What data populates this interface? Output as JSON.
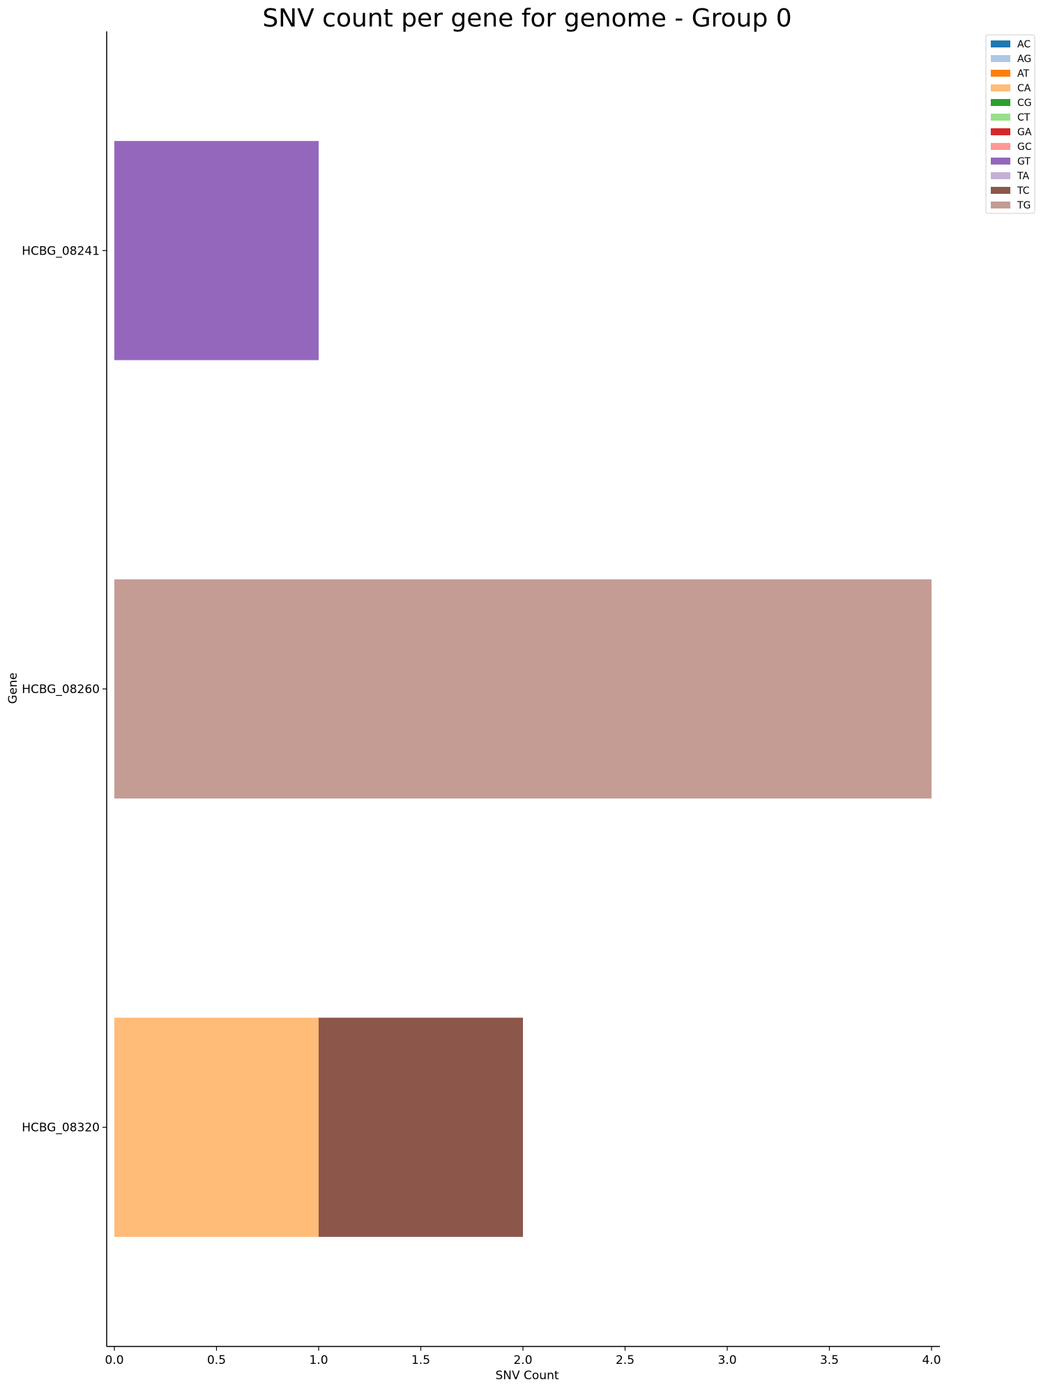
{
  "chart_data": {
    "type": "bar",
    "orientation": "horizontal",
    "stacked": true,
    "title": "SNV count per gene for genome - Group 0",
    "xlabel": "SNV Count",
    "ylabel": "Gene",
    "xlim": [
      0,
      4
    ],
    "xticks": [
      "0.0",
      "0.5",
      "1.0",
      "1.5",
      "2.0",
      "2.5",
      "3.0",
      "3.5",
      "4.0"
    ],
    "categories": [
      "HCBG_08241",
      "HCBG_08260",
      "HCBG_08320"
    ],
    "series": [
      {
        "name": "AC",
        "color": "#1f77b4",
        "values": [
          0,
          0,
          0
        ]
      },
      {
        "name": "AG",
        "color": "#aec7e8",
        "values": [
          0,
          0,
          0
        ]
      },
      {
        "name": "AT",
        "color": "#ff7f0e",
        "values": [
          0,
          0,
          0
        ]
      },
      {
        "name": "CA",
        "color": "#ffbb78",
        "values": [
          0,
          0,
          1
        ]
      },
      {
        "name": "CG",
        "color": "#2ca02c",
        "values": [
          0,
          0,
          0
        ]
      },
      {
        "name": "CT",
        "color": "#98df8a",
        "values": [
          0,
          0,
          0
        ]
      },
      {
        "name": "GA",
        "color": "#d62728",
        "values": [
          0,
          0,
          0
        ]
      },
      {
        "name": "GC",
        "color": "#ff9896",
        "values": [
          0,
          0,
          0
        ]
      },
      {
        "name": "GT",
        "color": "#9467bd",
        "values": [
          1,
          0,
          0
        ]
      },
      {
        "name": "TA",
        "color": "#c5b0d5",
        "values": [
          0,
          0,
          0
        ]
      },
      {
        "name": "TC",
        "color": "#8c564b",
        "values": [
          0,
          0,
          1
        ]
      },
      {
        "name": "TG",
        "color": "#c49c94",
        "values": [
          0,
          4,
          0
        ]
      }
    ],
    "legend_position": "top-right",
    "grid": false
  }
}
